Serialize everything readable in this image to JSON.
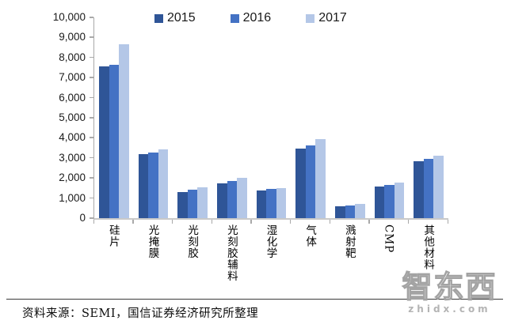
{
  "chart_data": {
    "type": "bar",
    "title": "",
    "categories": [
      "硅片",
      "光掩膜",
      "光刻胶",
      "光刻胶辅料",
      "湿化学",
      "气体",
      "溅射靶",
      "CMP",
      "其他材料"
    ],
    "series": [
      {
        "name": "2015",
        "color": "#2f5597",
        "values": [
          7550,
          3200,
          1300,
          1750,
          1360,
          3460,
          590,
          1590,
          2850
        ]
      },
      {
        "name": "2016",
        "color": "#4472c4",
        "values": [
          7650,
          3270,
          1400,
          1870,
          1440,
          3610,
          650,
          1660,
          2960
        ]
      },
      {
        "name": "2017",
        "color": "#b4c7e7",
        "values": [
          8650,
          3430,
          1550,
          2000,
          1480,
          3940,
          690,
          1780,
          3130
        ]
      }
    ],
    "ylim": [
      0,
      10000
    ],
    "ytick_step": 1000,
    "ytick_labels": [
      "0",
      "1,000",
      "2,000",
      "3,000",
      "4,000",
      "5,000",
      "6,000",
      "7,000",
      "8,000",
      "9,000",
      "10,000"
    ],
    "grid": false,
    "legend_position": "top",
    "axis_color": "#a9a9a9"
  },
  "footer": {
    "source_text": "资料来源：SEMI，国信证券经济研究所整理"
  },
  "watermark": {
    "logo_text": "智东西",
    "url_text": "zhidx.com"
  }
}
